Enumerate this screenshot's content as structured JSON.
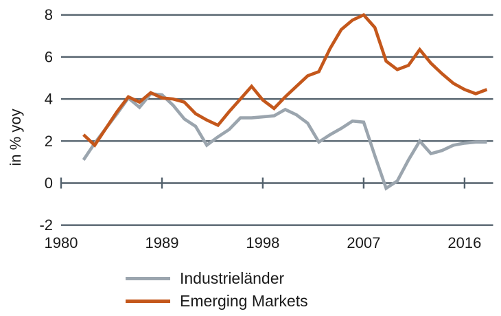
{
  "chart_data": {
    "type": "line",
    "title": "",
    "xlabel": "",
    "ylabel": "in % yoy",
    "grid": "horizontal",
    "legend_position": "bottom",
    "xlim": [
      1980,
      2018.6
    ],
    "ylim": [
      -2,
      8
    ],
    "x_tick_values": [
      1980,
      1989,
      1998,
      2007,
      2016
    ],
    "x_tick_labels": [
      "1980",
      "1989",
      "1998",
      "2007",
      "2016"
    ],
    "y_tick_values": [
      8,
      6,
      4,
      2,
      0,
      -2
    ],
    "y_tick_labels": [
      "8",
      "6",
      "4",
      "2",
      "0",
      "-2"
    ],
    "grid_color": "#53616c",
    "text_color": "#1a1a1a",
    "x": [
      1982,
      1983,
      1984,
      1985,
      1986,
      1987,
      1988,
      1989,
      1990,
      1991,
      1992,
      1993,
      1994,
      1995,
      1996,
      1997,
      1998,
      1999,
      2000,
      2001,
      2002,
      2003,
      2004,
      2005,
      2006,
      2007,
      2008,
      2009,
      2010,
      2011,
      2012,
      2013,
      2014,
      2015,
      2016,
      2017,
      2018
    ],
    "series": [
      {
        "name": "Industrieländer",
        "color": "#9ba5ae",
        "values": [
          1.1,
          1.9,
          2.6,
          3.3,
          4.05,
          3.6,
          4.25,
          4.2,
          3.7,
          3.05,
          2.7,
          1.8,
          2.2,
          2.55,
          3.1,
          3.1,
          3.15,
          3.2,
          3.5,
          3.25,
          2.85,
          1.95,
          2.3,
          2.6,
          2.95,
          2.9,
          1.3,
          -0.25,
          0.1,
          1.1,
          2.0,
          1.4,
          1.55,
          1.8,
          1.9,
          1.95,
          1.95
        ]
      },
      {
        "name": "Emerging Markets",
        "color": "#c4571b",
        "values": [
          2.3,
          1.8,
          2.6,
          3.4,
          4.1,
          3.85,
          4.3,
          4.05,
          4.0,
          3.85,
          3.3,
          3.0,
          2.75,
          3.4,
          4.0,
          4.6,
          3.95,
          3.55,
          4.1,
          4.6,
          5.1,
          5.3,
          6.4,
          7.3,
          7.75,
          8.0,
          7.4,
          5.8,
          5.4,
          5.6,
          6.35,
          5.7,
          5.2,
          4.75,
          4.45,
          4.25,
          4.45
        ]
      }
    ]
  }
}
